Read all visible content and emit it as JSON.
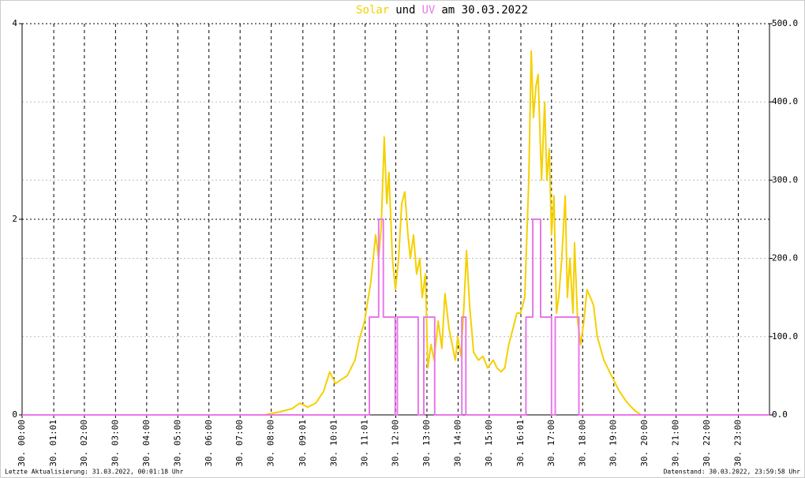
{
  "chart_data": {
    "type": "line",
    "title": [
      "Solar",
      "und",
      "UV",
      "am 30.03.2022"
    ],
    "xlim": [
      0,
      24
    ],
    "xticks": [
      {
        "value": 0,
        "label": "30. 00:00"
      },
      {
        "value": 1.017,
        "label": "30. 01:01"
      },
      {
        "value": 2,
        "label": "30. 02:00"
      },
      {
        "value": 3,
        "label": "30. 03:00"
      },
      {
        "value": 4,
        "label": "30. 04:00"
      },
      {
        "value": 5,
        "label": "30. 05:00"
      },
      {
        "value": 6,
        "label": "30. 06:00"
      },
      {
        "value": 7,
        "label": "30. 07:00"
      },
      {
        "value": 8,
        "label": "30. 08:00"
      },
      {
        "value": 9.017,
        "label": "30. 09:01"
      },
      {
        "value": 10.017,
        "label": "30. 10:01"
      },
      {
        "value": 11.017,
        "label": "30. 11:01"
      },
      {
        "value": 12,
        "label": "30. 12:00"
      },
      {
        "value": 13,
        "label": "30. 13:00"
      },
      {
        "value": 14,
        "label": "30. 14:00"
      },
      {
        "value": 15,
        "label": "30. 15:00"
      },
      {
        "value": 16.017,
        "label": "30. 16:01"
      },
      {
        "value": 17,
        "label": "30. 17:00"
      },
      {
        "value": 18,
        "label": "30. 18:00"
      },
      {
        "value": 19,
        "label": "30. 19:00"
      },
      {
        "value": 20,
        "label": "30. 20:00"
      },
      {
        "value": 21,
        "label": "30. 21:00"
      },
      {
        "value": 22,
        "label": "30. 22:00"
      },
      {
        "value": 23,
        "label": "30. 23:00"
      }
    ],
    "ylim": [
      0,
      4
    ],
    "yticks": [
      0,
      2,
      4
    ],
    "y2lim": [
      0,
      500
    ],
    "y2ticks": [
      {
        "value": 0,
        "label": "0.0"
      },
      {
        "value": 100,
        "label": "100.0"
      },
      {
        "value": 200,
        "label": "200.0"
      },
      {
        "value": 300,
        "label": "300.0"
      },
      {
        "value": 400,
        "label": "400.0"
      },
      {
        "value": 500,
        "label": "500.0"
      }
    ],
    "grid": true,
    "series": [
      {
        "name": "Solar",
        "color": "#f5d000",
        "axis": "y2",
        "x": [
          0,
          7.8,
          7.91,
          8.29,
          8.67,
          8.92,
          9.17,
          9.43,
          9.68,
          9.88,
          10.06,
          10.24,
          10.44,
          10.69,
          10.82,
          11.0,
          11.2,
          11.35,
          11.45,
          11.53,
          11.63,
          11.71,
          11.78,
          11.89,
          11.99,
          12.09,
          12.19,
          12.29,
          12.39,
          12.47,
          12.57,
          12.67,
          12.77,
          12.85,
          12.95,
          13.03,
          13.13,
          13.23,
          13.36,
          13.48,
          13.58,
          13.71,
          13.81,
          13.91,
          13.99,
          14.09,
          14.19,
          14.27,
          14.37,
          14.5,
          14.65,
          14.8,
          14.95,
          15.13,
          15.25,
          15.38,
          15.5,
          15.63,
          15.76,
          15.89,
          16.01,
          16.14,
          16.27,
          16.35,
          16.42,
          16.5,
          16.57,
          16.68,
          16.78,
          16.85,
          16.93,
          17.0,
          17.08,
          17.16,
          17.23,
          17.33,
          17.44,
          17.51,
          17.59,
          17.69,
          17.74,
          17.84,
          17.94,
          18.04,
          18.14,
          18.25,
          18.35,
          18.47,
          18.68,
          18.93,
          19.18,
          19.44,
          19.69,
          19.87,
          24
        ],
        "values": [
          0,
          0,
          1,
          4,
          8,
          15,
          10,
          15,
          30,
          55,
          40,
          45,
          50,
          70,
          95,
          120,
          170,
          230,
          200,
          240,
          355,
          270,
          310,
          200,
          160,
          200,
          270,
          285,
          230,
          200,
          230,
          180,
          200,
          150,
          180,
          60,
          90,
          70,
          120,
          85,
          155,
          110,
          90,
          70,
          100,
          75,
          140,
          210,
          140,
          80,
          70,
          75,
          60,
          70,
          60,
          55,
          60,
          90,
          110,
          130,
          130,
          150,
          300,
          465,
          380,
          420,
          435,
          300,
          400,
          300,
          340,
          230,
          280,
          130,
          150,
          200,
          280,
          150,
          200,
          130,
          220,
          120,
          90,
          120,
          160,
          150,
          140,
          100,
          70,
          50,
          30,
          15,
          5,
          0,
          0
        ]
      },
      {
        "name": "UV",
        "color": "#e878e8",
        "x": [
          0,
          11.15,
          11.15,
          11.45,
          11.45,
          11.6,
          11.6,
          11.98,
          11.98,
          12.05,
          12.05,
          12.72,
          12.72,
          12.9,
          12.9,
          13.25,
          13.25,
          14.12,
          14.12,
          14.25,
          14.25,
          16.18,
          16.18,
          16.4,
          16.4,
          16.65,
          16.65,
          17.0,
          17.0,
          17.12,
          17.12,
          17.88,
          17.88,
          24
        ],
        "values": [
          0,
          0,
          1,
          1,
          2,
          2,
          1,
          1,
          0,
          0,
          1,
          1,
          0,
          0,
          1,
          1,
          0,
          0,
          1,
          1,
          0,
          0,
          1,
          1,
          2,
          2,
          1,
          1,
          0,
          0,
          1,
          1,
          0,
          0
        ]
      }
    ]
  },
  "footer": {
    "left": "Letzte Aktualisierung: 31.03.2022, 00:01:18 Uhr",
    "right": "Datenstand: 30.03.2022, 23:59:58 Uhr"
  }
}
